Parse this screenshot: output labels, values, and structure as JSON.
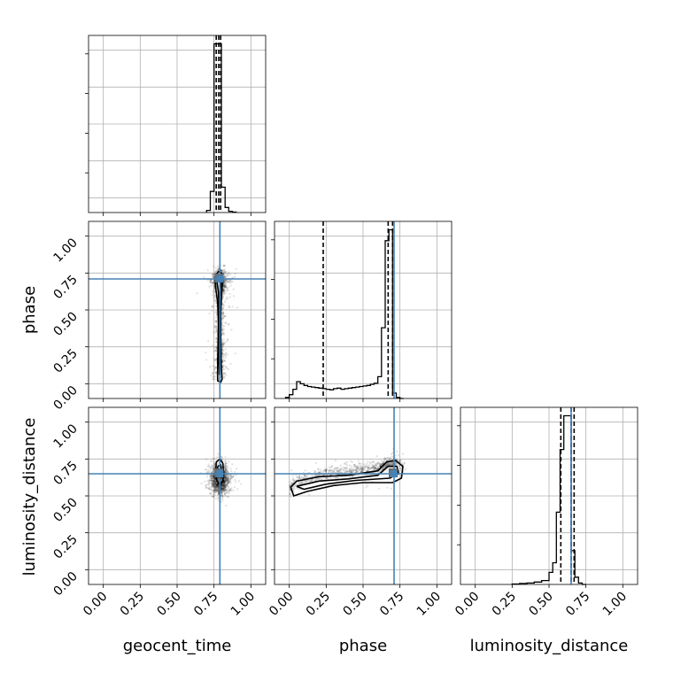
{
  "chart_data": {
    "type": "corner",
    "parameters": [
      "geocent_time",
      "phase",
      "luminosity_distance"
    ],
    "truths": {
      "geocent_time": 0.79,
      "phase": 0.71,
      "luminosity_distance": 0.65
    },
    "axis_range": [
      -0.1,
      1.1
    ],
    "tick_values": [
      0.0,
      0.25,
      0.5,
      0.75,
      1.0
    ],
    "tick_labels": [
      "0.00",
      "0.25",
      "0.50",
      "0.75",
      "1.00"
    ],
    "grid": true,
    "histograms": {
      "geocent_time": {
        "bin_edges": [
          0.7,
          0.725,
          0.75,
          0.775,
          0.8,
          0.825,
          0.85,
          0.875,
          0.9
        ],
        "counts": [
          0.05,
          0.5,
          4.0,
          4.0,
          0.6,
          0.12,
          0.03,
          0.01
        ],
        "quantiles": [
          0.765,
          0.782,
          0.795
        ]
      },
      "phase": {
        "bin_edges": [
          -0.025,
          0.0,
          0.025,
          0.05,
          0.075,
          0.1,
          0.125,
          0.15,
          0.175,
          0.2,
          0.225,
          0.25,
          0.275,
          0.3,
          0.325,
          0.35,
          0.375,
          0.4,
          0.425,
          0.45,
          0.475,
          0.5,
          0.525,
          0.55,
          0.575,
          0.6,
          0.625,
          0.65,
          0.675,
          0.7,
          0.725,
          0.75,
          0.775
        ],
        "counts": [
          0.02,
          0.07,
          0.17,
          0.31,
          0.27,
          0.24,
          0.22,
          0.21,
          0.2,
          0.19,
          0.18,
          0.17,
          0.16,
          0.18,
          0.19,
          0.17,
          0.18,
          0.19,
          0.2,
          0.21,
          0.22,
          0.23,
          0.24,
          0.26,
          0.28,
          0.4,
          1.3,
          2.9,
          3.1,
          0.1,
          0.02,
          0.0
        ],
        "quantiles": [
          0.23,
          0.67,
          0.7
        ]
      },
      "luminosity_distance": {
        "bin_edges": [
          0.25,
          0.3,
          0.35,
          0.4,
          0.45,
          0.5,
          0.525,
          0.55,
          0.575,
          0.6,
          0.625,
          0.65,
          0.675,
          0.7,
          0.725,
          0.75
        ],
        "counts": [
          0.01,
          0.02,
          0.03,
          0.05,
          0.08,
          0.25,
          0.45,
          1.5,
          2.8,
          3.5,
          3.5,
          0.7,
          0.15,
          0.03,
          0.0
        ],
        "quantiles": [
          0.58,
          0.65,
          0.67
        ]
      }
    },
    "panels_2d": [
      {
        "x": "geocent_time",
        "y": "phase",
        "row": 1,
        "col": 0
      },
      {
        "x": "geocent_time",
        "y": "luminosity_distance",
        "row": 2,
        "col": 0
      },
      {
        "x": "phase",
        "y": "luminosity_distance",
        "row": 2,
        "col": 1
      }
    ],
    "colors": {
      "truth": "#4682b4",
      "hist": "#000000",
      "scatter": "#000000"
    }
  }
}
